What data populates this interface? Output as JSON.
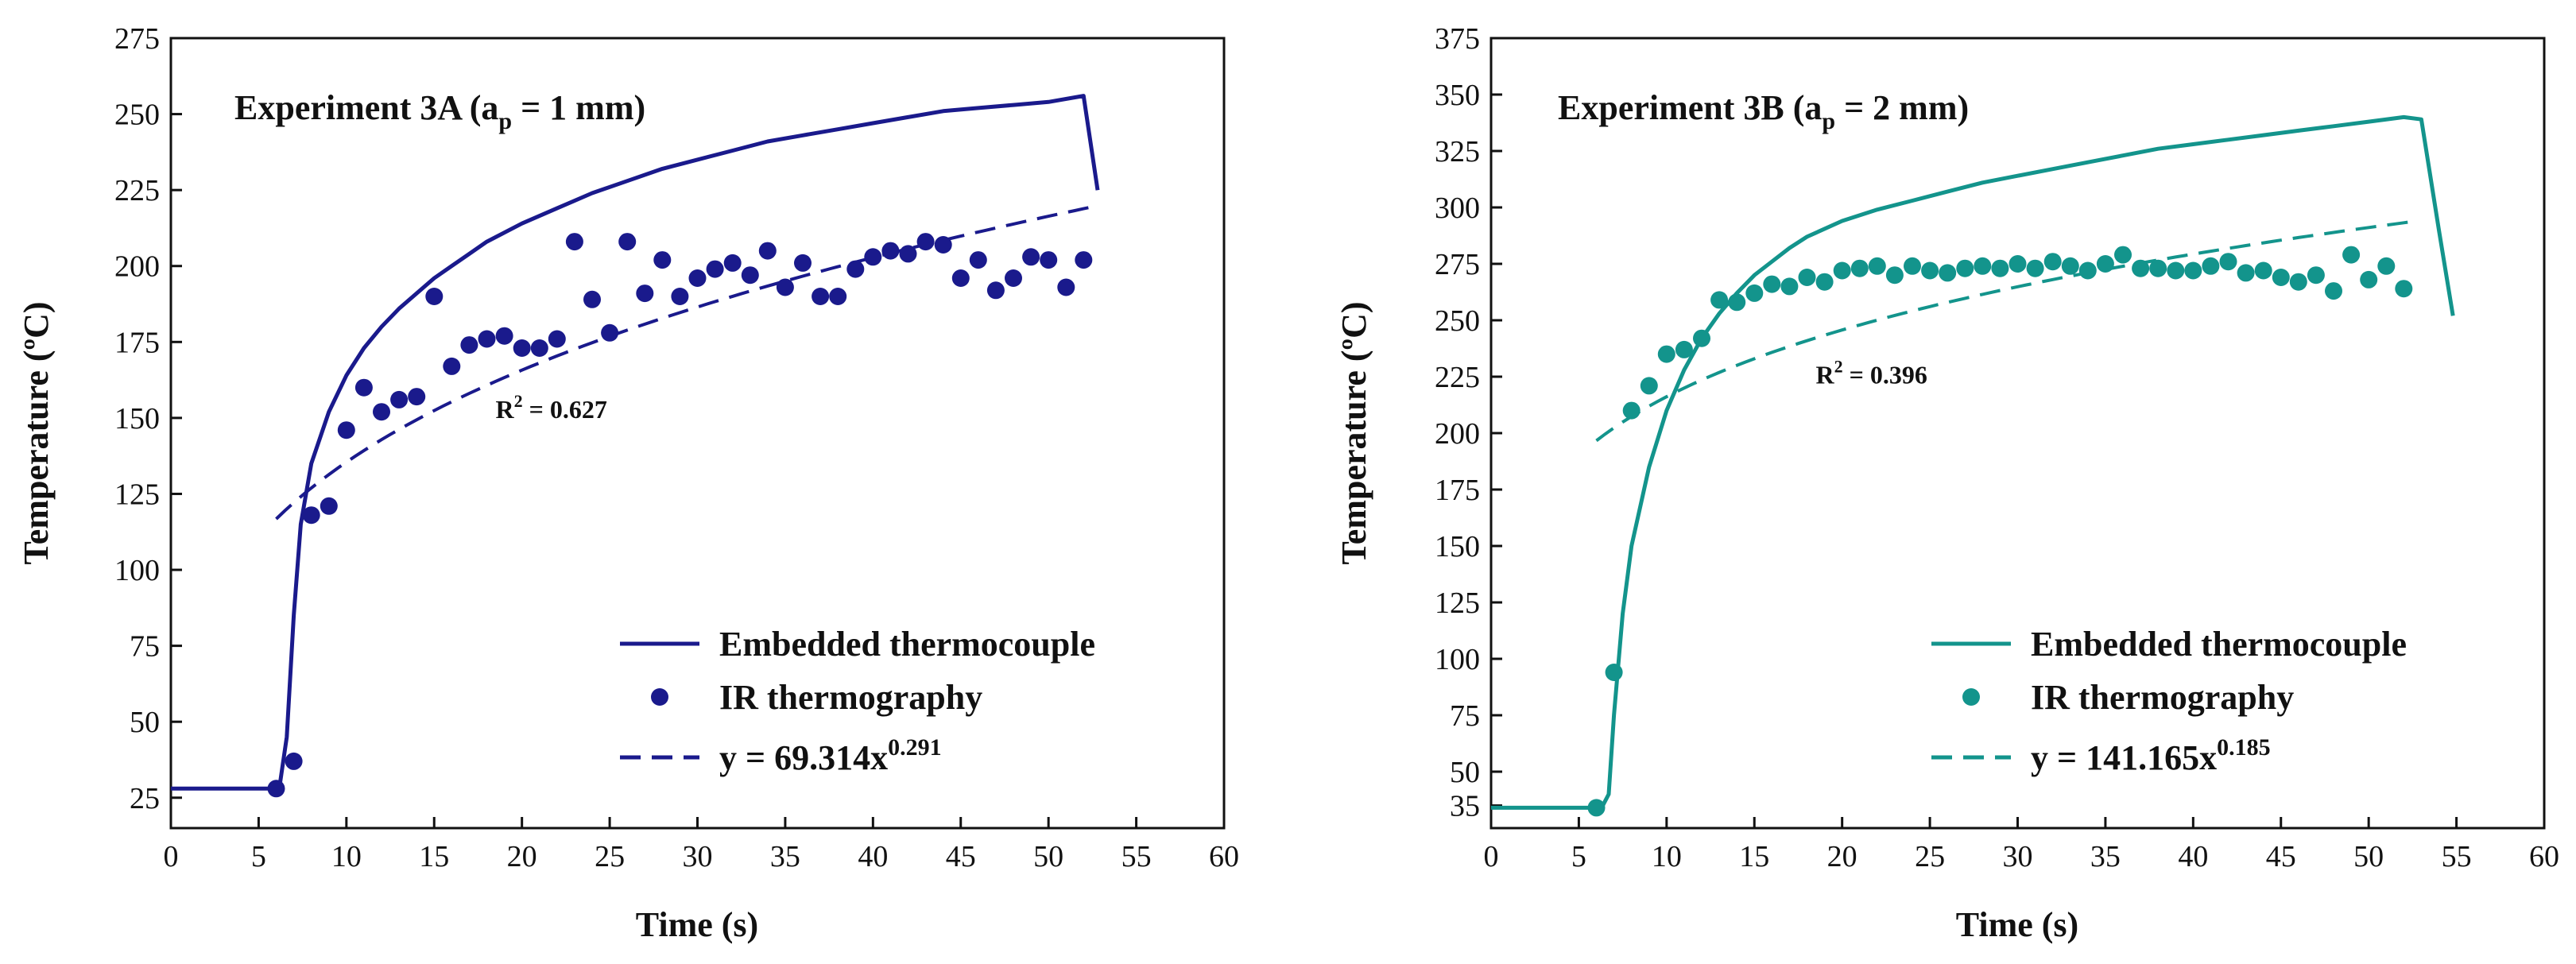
{
  "chart_data": [
    {
      "type": "line",
      "panel": "left",
      "title_main": "Experiment 3A (a",
      "title_sub": "p",
      "title_tail": " = 1 mm)",
      "xlabel": "Time (s)",
      "ylabel": "Temperature (ºC)",
      "xlim": [
        0,
        60
      ],
      "ylim": [
        15,
        275
      ],
      "xticks": [
        "0",
        "5",
        "10",
        "15",
        "20",
        "25",
        "30",
        "35",
        "40",
        "45",
        "50",
        "55",
        "60"
      ],
      "yticks": [
        "25",
        "50",
        "75",
        "100",
        "125",
        "150",
        "175",
        "200",
        "225",
        "250",
        "275"
      ],
      "color": "#1a1a8c",
      "r2_text": "R",
      "r2_sup": "2",
      "r2_tail": " = 0.627",
      "r2_at": [
        18.5,
        150
      ],
      "legend": {
        "line_label": "Embedded thermocouple",
        "points_label": "IR thermography",
        "fit_label_main": "y = 69.314x",
        "fit_label_sup": "0.291"
      },
      "fit": {
        "a": 69.314,
        "b": 0.291,
        "x_range": [
          6,
          52.5
        ]
      },
      "thermocouple": [
        [
          0,
          28
        ],
        [
          5.8,
          28
        ],
        [
          6.2,
          29
        ],
        [
          6.6,
          45
        ],
        [
          7.0,
          85
        ],
        [
          7.4,
          115
        ],
        [
          8,
          135
        ],
        [
          9,
          152
        ],
        [
          10,
          164
        ],
        [
          11,
          173
        ],
        [
          12,
          180
        ],
        [
          13,
          186
        ],
        [
          14,
          191
        ],
        [
          15,
          196
        ],
        [
          16,
          200
        ],
        [
          17,
          204
        ],
        [
          18,
          208
        ],
        [
          20,
          214
        ],
        [
          22,
          219
        ],
        [
          24,
          224
        ],
        [
          26,
          228
        ],
        [
          28,
          232
        ],
        [
          30,
          235
        ],
        [
          32,
          238
        ],
        [
          34,
          241
        ],
        [
          36,
          243
        ],
        [
          38,
          245
        ],
        [
          40,
          247
        ],
        [
          42,
          249
        ],
        [
          44,
          251
        ],
        [
          46,
          252
        ],
        [
          48,
          253
        ],
        [
          50,
          254
        ],
        [
          52,
          256
        ],
        [
          52.8,
          225
        ]
      ],
      "ir_points": [
        [
          6,
          28
        ],
        [
          7,
          37
        ],
        [
          8,
          118
        ],
        [
          9,
          121
        ],
        [
          10,
          146
        ],
        [
          11,
          160
        ],
        [
          12,
          152
        ],
        [
          13,
          156
        ],
        [
          14,
          157
        ],
        [
          15,
          190
        ],
        [
          16,
          167
        ],
        [
          17,
          174
        ],
        [
          18,
          176
        ],
        [
          19,
          177
        ],
        [
          20,
          173
        ],
        [
          21,
          173
        ],
        [
          22,
          176
        ],
        [
          23,
          208
        ],
        [
          24,
          189
        ],
        [
          25,
          178
        ],
        [
          26,
          208
        ],
        [
          27,
          191
        ],
        [
          28,
          202
        ],
        [
          29,
          190
        ],
        [
          30,
          196
        ],
        [
          31,
          199
        ],
        [
          32,
          201
        ],
        [
          33,
          197
        ],
        [
          34,
          205
        ],
        [
          35,
          193
        ],
        [
          36,
          201
        ],
        [
          37,
          190
        ],
        [
          38,
          190
        ],
        [
          39,
          199
        ],
        [
          40,
          203
        ],
        [
          41,
          205
        ],
        [
          42,
          204
        ],
        [
          43,
          208
        ],
        [
          44,
          207
        ],
        [
          45,
          196
        ],
        [
          46,
          202
        ],
        [
          47,
          192
        ],
        [
          48,
          196
        ],
        [
          49,
          203
        ],
        [
          50,
          202
        ],
        [
          51,
          193
        ],
        [
          52,
          202
        ]
      ]
    },
    {
      "type": "line",
      "panel": "right",
      "title_main": "Experiment 3B (a",
      "title_sub": "p",
      "title_tail": " = 2 mm)",
      "xlabel": "Time (s)",
      "ylabel": "Temperature (ºC)",
      "xlim": [
        0,
        60
      ],
      "ylim": [
        25,
        375
      ],
      "xticks": [
        "0",
        "5",
        "10",
        "15",
        "20",
        "25",
        "30",
        "35",
        "40",
        "45",
        "50",
        "55",
        "60"
      ],
      "yticks": [
        "35",
        "50",
        "75",
        "100",
        "125",
        "150",
        "175",
        "200",
        "225",
        "250",
        "275",
        "300",
        "325",
        "350",
        "375"
      ],
      "color": "#13948c",
      "r2_text": "R",
      "r2_sup": "2",
      "r2_tail": " = 0.396",
      "r2_at": [
        18.5,
        222
      ],
      "legend": {
        "line_label": "Embedded thermocouple",
        "points_label": "IR thermography",
        "fit_label_main": "y = 141.165x",
        "fit_label_sup": "0.185"
      },
      "fit": {
        "a": 141.165,
        "b": 0.185,
        "x_range": [
          6,
          52.5
        ]
      },
      "thermocouple": [
        [
          0,
          34
        ],
        [
          6.3,
          34
        ],
        [
          6.7,
          40
        ],
        [
          7.0,
          75
        ],
        [
          7.5,
          120
        ],
        [
          8,
          150
        ],
        [
          9,
          185
        ],
        [
          10,
          210
        ],
        [
          11,
          228
        ],
        [
          12,
          242
        ],
        [
          13,
          253
        ],
        [
          14,
          262
        ],
        [
          15,
          270
        ],
        [
          16,
          276
        ],
        [
          17,
          282
        ],
        [
          18,
          287
        ],
        [
          20,
          294
        ],
        [
          22,
          299
        ],
        [
          24,
          303
        ],
        [
          26,
          307
        ],
        [
          28,
          311
        ],
        [
          30,
          314
        ],
        [
          32,
          317
        ],
        [
          34,
          320
        ],
        [
          36,
          323
        ],
        [
          38,
          326
        ],
        [
          40,
          328
        ],
        [
          42,
          330
        ],
        [
          44,
          332
        ],
        [
          46,
          334
        ],
        [
          48,
          336
        ],
        [
          50,
          338
        ],
        [
          52,
          340
        ],
        [
          53,
          339
        ],
        [
          54,
          290
        ],
        [
          54.8,
          252
        ]
      ],
      "ir_points": [
        [
          6,
          34
        ],
        [
          7,
          94
        ],
        [
          8,
          210
        ],
        [
          9,
          221
        ],
        [
          10,
          235
        ],
        [
          11,
          237
        ],
        [
          12,
          242
        ],
        [
          13,
          259
        ],
        [
          14,
          258
        ],
        [
          15,
          262
        ],
        [
          16,
          266
        ],
        [
          17,
          265
        ],
        [
          18,
          269
        ],
        [
          19,
          267
        ],
        [
          20,
          272
        ],
        [
          21,
          273
        ],
        [
          22,
          274
        ],
        [
          23,
          270
        ],
        [
          24,
          274
        ],
        [
          25,
          272
        ],
        [
          26,
          271
        ],
        [
          27,
          273
        ],
        [
          28,
          274
        ],
        [
          29,
          273
        ],
        [
          30,
          275
        ],
        [
          31,
          273
        ],
        [
          32,
          276
        ],
        [
          33,
          274
        ],
        [
          34,
          272
        ],
        [
          35,
          275
        ],
        [
          36,
          279
        ],
        [
          37,
          273
        ],
        [
          38,
          273
        ],
        [
          39,
          272
        ],
        [
          40,
          272
        ],
        [
          41,
          274
        ],
        [
          42,
          276
        ],
        [
          43,
          271
        ],
        [
          44,
          272
        ],
        [
          45,
          269
        ],
        [
          46,
          267
        ],
        [
          47,
          270
        ],
        [
          48,
          263
        ],
        [
          49,
          279
        ],
        [
          50,
          268
        ],
        [
          51,
          274
        ],
        [
          52,
          264
        ]
      ]
    }
  ]
}
